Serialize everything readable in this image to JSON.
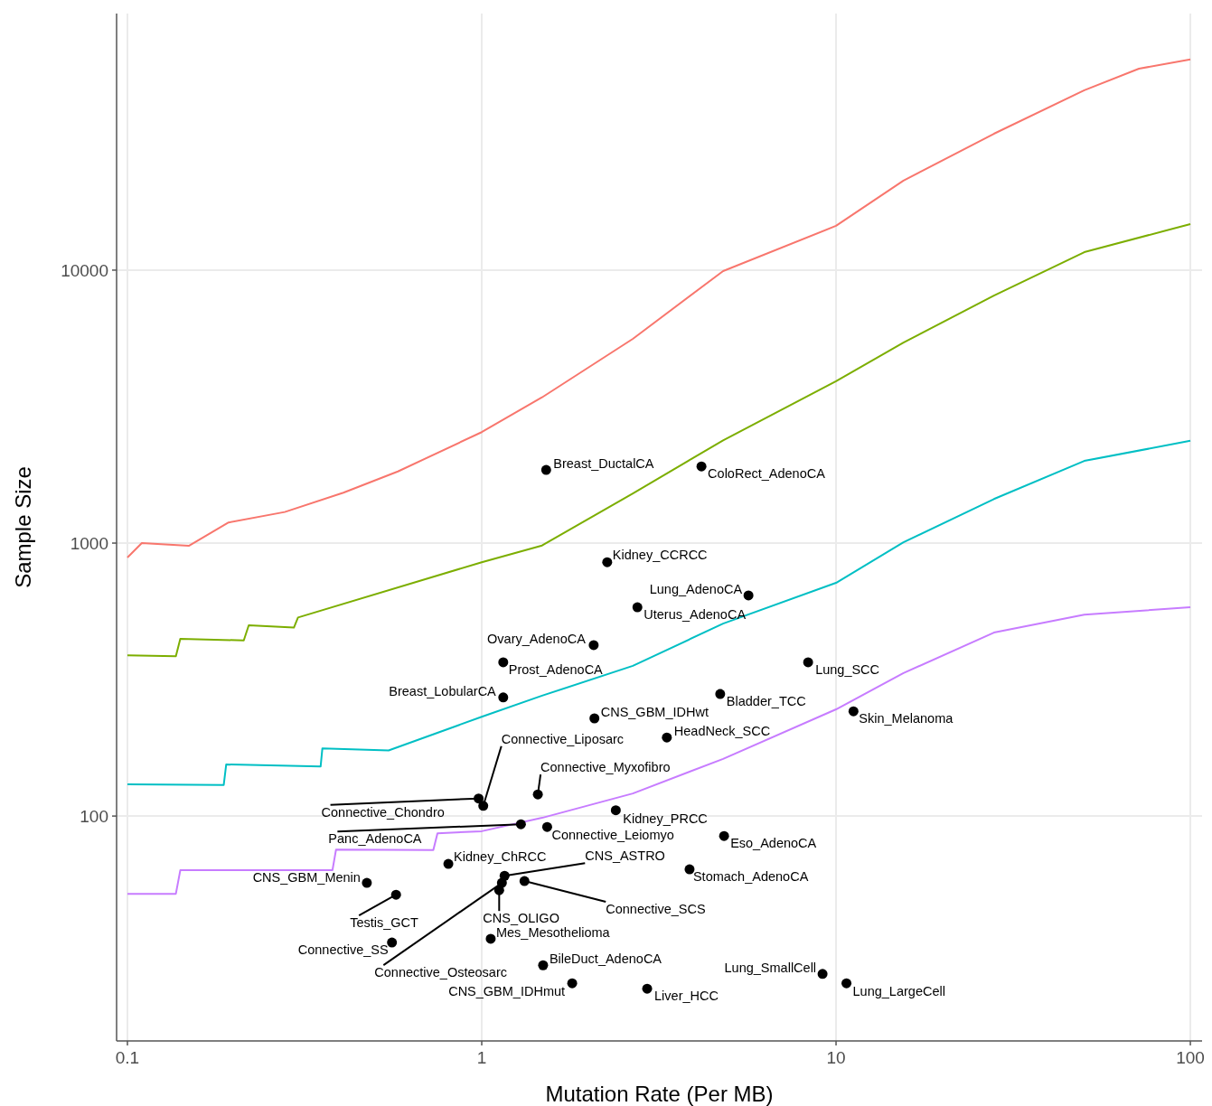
{
  "chart_data": {
    "type": "scatter",
    "xlabel": "Mutation Rate (Per MB)",
    "ylabel": "Sample Size",
    "log": "xy",
    "grid": true,
    "xlim": [
      0.0932,
      107.9
    ],
    "ylim": [
      15.0,
      87100
    ],
    "xticks": [
      0.1,
      1,
      10,
      100
    ],
    "yticks": [
      100,
      1000,
      10000
    ],
    "series": [
      {
        "type": "line",
        "color": "#f8766d",
        "x": [
          0.1,
          0.1098,
          0.149,
          0.193,
          0.278,
          0.407,
          0.58,
          1,
          1.48,
          2.67,
          4.8,
          10,
          15.5,
          27.9,
          50.2,
          71.6,
          100
        ],
        "values": [
          885,
          1000,
          977,
          1190,
          1300,
          1530,
          1830,
          2550,
          3420,
          5600,
          9920,
          14530,
          21280,
          31600,
          45600,
          54700,
          59200
        ]
      },
      {
        "type": "line",
        "color": "#7cae00",
        "x": [
          0.1,
          0.137,
          0.141,
          0.213,
          0.22,
          0.295,
          0.303,
          1,
          1.48,
          2.67,
          4.8,
          10,
          15.5,
          27.9,
          50.2,
          100
        ],
        "values": [
          388,
          385,
          446,
          440,
          500,
          490,
          534,
          851,
          980,
          1520,
          2380,
          3920,
          5430,
          8070,
          11640,
          14750
        ]
      },
      {
        "type": "line",
        "color": "#00bfc4",
        "x": [
          0.1,
          0.187,
          0.19,
          0.351,
          0.355,
          0.546,
          1,
          1.48,
          2.67,
          4.8,
          10,
          15.5,
          27.9,
          50.2,
          100
        ],
        "values": [
          130.6,
          130,
          154.5,
          152,
          177,
          174,
          231,
          276,
          355,
          507,
          715,
          1007,
          1450,
          2000,
          2370
        ]
      },
      {
        "type": "line",
        "color": "#c77cff",
        "x": [
          0.1,
          0.137,
          0.141,
          0.379,
          0.388,
          0.73,
          0.75,
          1,
          1.48,
          2.67,
          4.8,
          10,
          15.5,
          27.9,
          50.2,
          100
        ],
        "values": [
          51.9,
          51.9,
          63.3,
          63.3,
          75.4,
          75,
          86.5,
          88,
          98.5,
          121,
          162,
          246,
          334,
          470,
          547,
          582
        ]
      },
      {
        "marker": "circle",
        "color": "#000000",
        "x": [
          1.52,
          4.17,
          2.26,
          5.66,
          2.75,
          2.07,
          1.15,
          8.34,
          1.15,
          4.71,
          11.2,
          2.08,
          3.33,
          1.01,
          0.98,
          1.44,
          2.39,
          1.29,
          1.53,
          4.83,
          0.805,
          3.86,
          1.16,
          1.32,
          0.474,
          1.12,
          0.573,
          1.14,
          0.558,
          1.06,
          1.49,
          9.16,
          10.7,
          1.8,
          2.93
        ],
        "values": [
          1853,
          1910,
          851,
          643,
          582,
          423,
          366,
          366,
          272,
          280,
          242,
          228,
          194,
          109,
          116,
          120,
          105,
          93.3,
          91.2,
          84.5,
          66.8,
          63.8,
          60.4,
          57.8,
          56.9,
          53.5,
          51.5,
          56.9,
          34.4,
          35.5,
          28.4,
          26.4,
          24.4,
          24.4,
          23.3
        ]
      }
    ],
    "annotations": [
      {
        "text": "Breast_DuctalCA",
        "x": 1.52,
        "y": 1853
      },
      {
        "text": "ColoRect_AdenoCA",
        "x": 4.17,
        "y": 1910
      },
      {
        "text": "Kidney_CCRCC",
        "x": 2.26,
        "y": 851
      },
      {
        "text": "Lung_AdenoCA",
        "x": 5.66,
        "y": 643
      },
      {
        "text": "Uterus_AdenoCA",
        "x": 2.75,
        "y": 582
      },
      {
        "text": "Ovary_AdenoCA",
        "x": 2.07,
        "y": 423
      },
      {
        "text": "Prost_AdenoCA",
        "x": 1.15,
        "y": 366
      },
      {
        "text": "Lung_SCC",
        "x": 8.34,
        "y": 366
      },
      {
        "text": "Breast_LobularCA",
        "x": 1.15,
        "y": 272
      },
      {
        "text": "Bladder_TCC",
        "x": 4.71,
        "y": 280
      },
      {
        "text": "Skin_Melanoma",
        "x": 11.2,
        "y": 242
      },
      {
        "text": "CNS_GBM_IDHwt",
        "x": 2.08,
        "y": 228
      },
      {
        "text": "HeadNeck_SCC",
        "x": 3.33,
        "y": 194
      },
      {
        "text": "Connective_Liposarc",
        "x": 1.01,
        "y": 109
      },
      {
        "text": "Connective_Chondro",
        "x": 0.98,
        "y": 116
      },
      {
        "text": "Connective_Myxofibro",
        "x": 1.44,
        "y": 120
      },
      {
        "text": "Kidney_PRCC",
        "x": 2.39,
        "y": 105
      },
      {
        "text": "Panc_AdenoCA",
        "x": 1.29,
        "y": 93.3
      },
      {
        "text": "Connective_Leiomyo",
        "x": 1.53,
        "y": 91.2
      },
      {
        "text": "Eso_AdenoCA",
        "x": 4.83,
        "y": 84.5
      },
      {
        "text": "Kidney_ChRCC",
        "x": 0.805,
        "y": 66.8
      },
      {
        "text": "Stomach_AdenoCA",
        "x": 3.86,
        "y": 63.8
      },
      {
        "text": "CNS_ASTRO",
        "x": 1.16,
        "y": 60.4
      },
      {
        "text": "Connective_SCS",
        "x": 1.32,
        "y": 57.8
      },
      {
        "text": "CNS_GBM_Menin",
        "x": 0.474,
        "y": 56.9
      },
      {
        "text": "CNS_OLIGO",
        "x": 1.12,
        "y": 53.5
      },
      {
        "text": "Testis_GCT",
        "x": 0.573,
        "y": 51.5
      },
      {
        "text": "Connective_Osteosarc",
        "x": 1.14,
        "y": 56.9
      },
      {
        "text": "Connective_SS",
        "x": 0.558,
        "y": 34.4
      },
      {
        "text": "Mes_Mesothelioma",
        "x": 1.06,
        "y": 35.5
      },
      {
        "text": "BileDuct_AdenoCA",
        "x": 1.49,
        "y": 28.4
      },
      {
        "text": "Lung_SmallCell",
        "x": 9.16,
        "y": 26.4
      },
      {
        "text": "Lung_LargeCell",
        "x": 10.7,
        "y": 24.4
      },
      {
        "text": "CNS_GBM_IDHmut",
        "x": 1.8,
        "y": 24.4
      },
      {
        "text": "Liver_HCC",
        "x": 2.93,
        "y": 23.3
      }
    ]
  }
}
